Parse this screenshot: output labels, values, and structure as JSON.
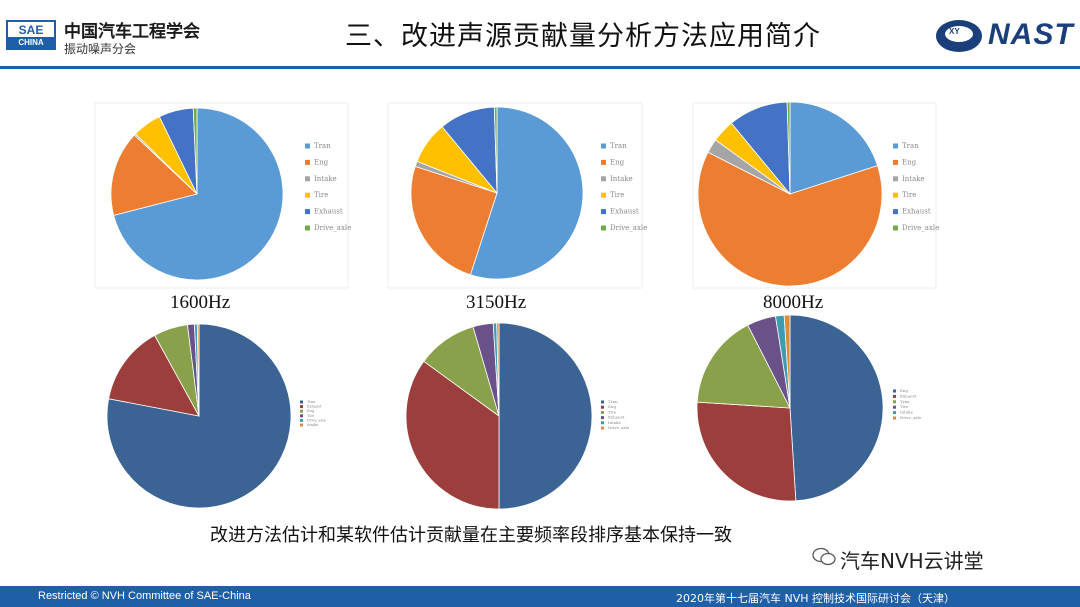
{
  "header": {
    "logo_top": "SAE",
    "logo_bottom": "CHINA",
    "org_name": "中国汽车工程学会",
    "org_sub": "振动噪声分会",
    "title": "三、改进声源贡献量分析方法应用简介",
    "brand": "NAST",
    "brand_mark": "XY"
  },
  "chart_data": [
    {
      "type": "pie",
      "categories": [
        "Tran",
        "Eng",
        "Intake",
        "Tire",
        "Exhaust",
        "Drive_axle"
      ],
      "values": [
        71,
        16,
        0.3,
        5.5,
        6.5,
        0.7
      ],
      "colors": [
        "#5b9bd5",
        "#ed7d31",
        "#a5a5a5",
        "#ffc000",
        "#4472c4",
        "#70ad47"
      ],
      "xlabel": "1600Hz"
    },
    {
      "type": "pie",
      "categories": [
        "Tran",
        "Eng",
        "Intake",
        "Tire",
        "Exhaust",
        "Drive_axle"
      ],
      "values": [
        55,
        25,
        1,
        8,
        10.5,
        0.5
      ],
      "colors": [
        "#5b9bd5",
        "#ed7d31",
        "#a5a5a5",
        "#ffc000",
        "#4472c4",
        "#70ad47"
      ],
      "xlabel": "3150Hz"
    },
    {
      "type": "pie",
      "categories": [
        "Tran",
        "Eng",
        "Intake",
        "Tire",
        "Exhaust",
        "Drive_axle"
      ],
      "values": [
        20,
        62.5,
        2.5,
        4,
        10.5,
        0.5
      ],
      "colors": [
        "#5b9bd5",
        "#ed7d31",
        "#a5a5a5",
        "#ffc000",
        "#4472c4",
        "#70ad47"
      ],
      "xlabel": "8000Hz"
    },
    {
      "type": "pie",
      "categories": [
        "Tran",
        "Exhaust",
        "Eng",
        "Tire",
        "Drive_axle",
        "Intake"
      ],
      "values": [
        78,
        14,
        6,
        1.2,
        0.5,
        0.3
      ],
      "colors": [
        "#3b6394",
        "#9b3e3c",
        "#8aa14c",
        "#6b5189",
        "#3f9bb0",
        "#d98c3c"
      ],
      "xlabel": ""
    },
    {
      "type": "pie",
      "categories": [
        "Tran",
        "Eng",
        "Tire",
        "Exhaust",
        "Intake",
        "Drive_axle"
      ],
      "values": [
        50,
        35,
        10.5,
        3.5,
        0.6,
        0.4
      ],
      "colors": [
        "#3b6394",
        "#9b3e3c",
        "#8aa14c",
        "#6b5189",
        "#3f9bb0",
        "#d98c3c"
      ],
      "xlabel": ""
    },
    {
      "type": "pie",
      "categories": [
        "Eng",
        "Exhaust",
        "Tran",
        "Tire",
        "Intake",
        "Drive_axle"
      ],
      "values": [
        49,
        27,
        16.5,
        5,
        1.5,
        1
      ],
      "colors": [
        "#3b6394",
        "#9b3e3c",
        "#8aa14c",
        "#6b5189",
        "#3f9bb0",
        "#d98c3c"
      ],
      "xlabel": ""
    }
  ],
  "caption": "改进方法估计和某软件估计贡献量在主要频率段排序基本保持一致",
  "watermark": "汽车NVH云讲堂",
  "footer": {
    "left": "Restricted © NVH Committee of SAE-China",
    "right": "2020年第十七届汽车 NVH 控制技术国际研讨会（天津）"
  }
}
